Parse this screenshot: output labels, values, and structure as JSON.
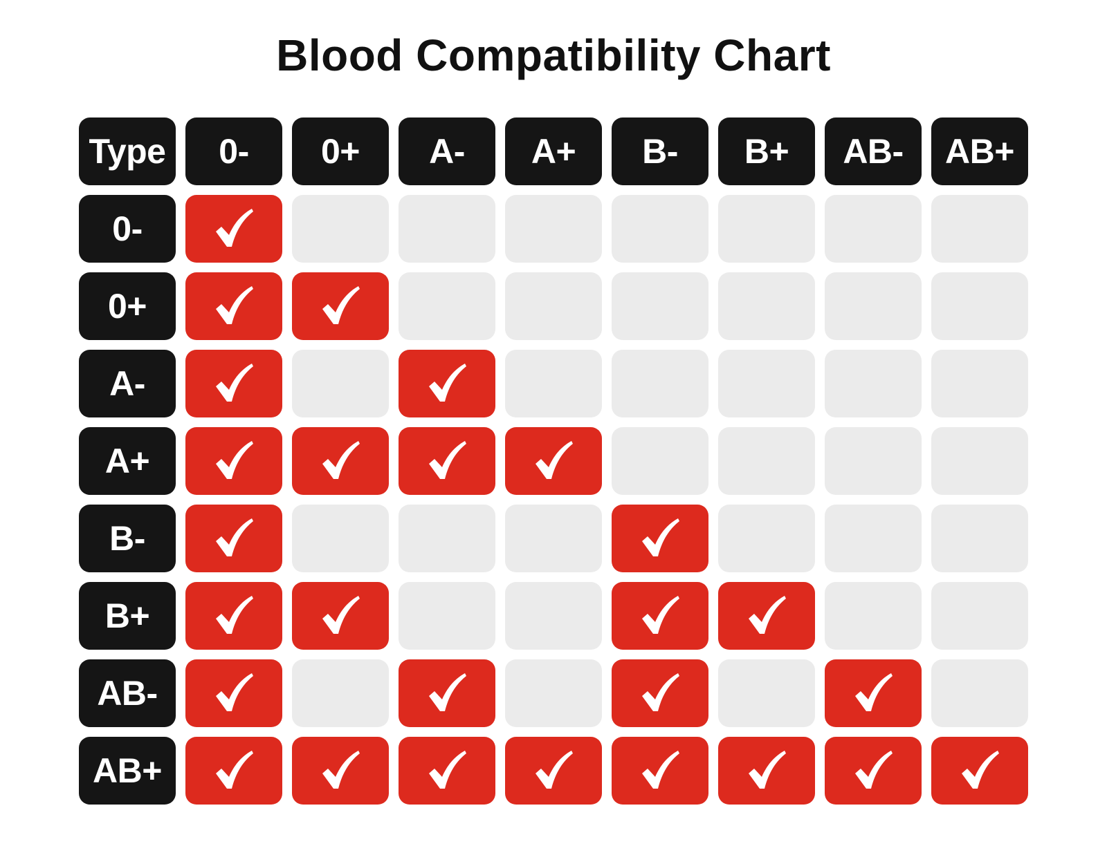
{
  "title": "Blood Compatibility Chart",
  "colors": {
    "header_bg": "#151515",
    "compatible": "#dd2a1e",
    "empty": "#ebebeb",
    "text": "#ffffff",
    "title": "#111111"
  },
  "chart_data": {
    "type": "table",
    "title": "Blood Compatibility Chart",
    "corner_label": "Type",
    "columns": [
      "0-",
      "0+",
      "A-",
      "A+",
      "B-",
      "B+",
      "AB-",
      "AB+"
    ],
    "rows": [
      "0-",
      "0+",
      "A-",
      "A+",
      "B-",
      "B+",
      "AB-",
      "AB+"
    ],
    "matrix": [
      [
        1,
        0,
        0,
        0,
        0,
        0,
        0,
        0
      ],
      [
        1,
        1,
        0,
        0,
        0,
        0,
        0,
        0
      ],
      [
        1,
        0,
        1,
        0,
        0,
        0,
        0,
        0
      ],
      [
        1,
        1,
        1,
        1,
        0,
        0,
        0,
        0
      ],
      [
        1,
        0,
        0,
        0,
        1,
        0,
        0,
        0
      ],
      [
        1,
        1,
        0,
        0,
        1,
        1,
        0,
        0
      ],
      [
        1,
        0,
        1,
        0,
        1,
        0,
        1,
        0
      ],
      [
        1,
        1,
        1,
        1,
        1,
        1,
        1,
        1
      ]
    ],
    "mark_icon": "checkmark-icon"
  }
}
